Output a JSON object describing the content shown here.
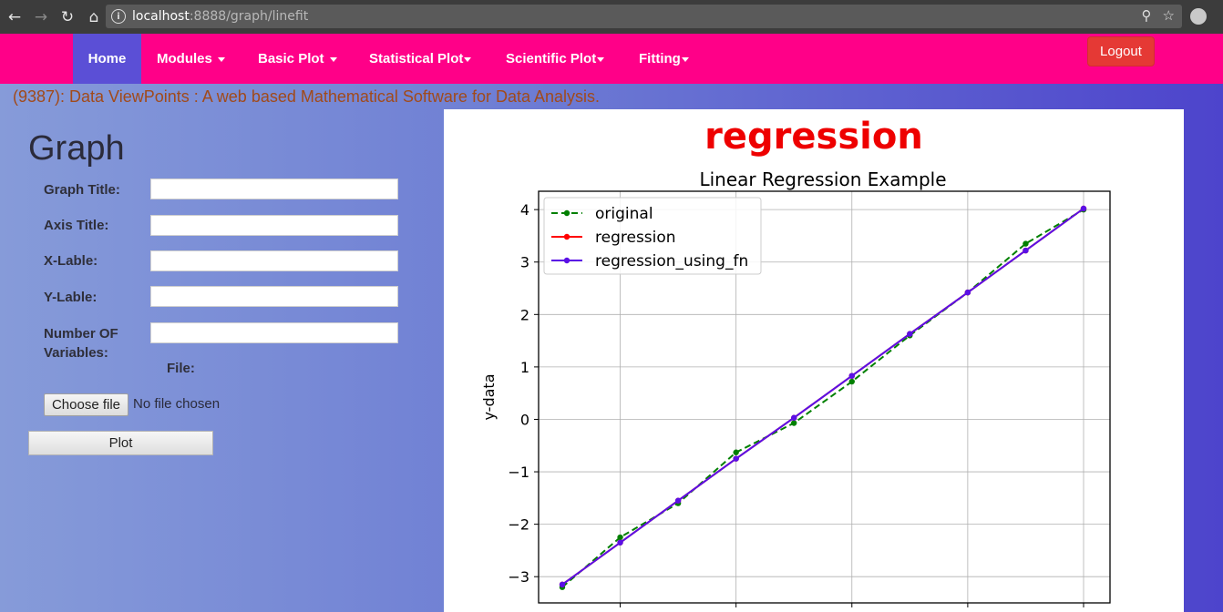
{
  "browser": {
    "url_host": "localhost",
    "url_rest": ":8888/graph/linefit",
    "icons": [
      "back-icon",
      "forward-icon",
      "reload-icon",
      "home-icon",
      "info-icon",
      "zoom-icon",
      "star-icon",
      "extension-icon"
    ]
  },
  "navbar": {
    "items": [
      {
        "label": "Home"
      },
      {
        "label": "Modules"
      },
      {
        "label": "Basic Plot"
      },
      {
        "label": "Statistical Plot"
      },
      {
        "label": "Scientific Plot"
      },
      {
        "label": "Fitting"
      }
    ],
    "logout_label": "Logout",
    "colors": {
      "bar": "#ff0088",
      "active": "#5b4fd6",
      "logout": "#e53935"
    }
  },
  "tagline": "(9387): Data ViewPoints : A web based Mathematical Software for Data Analysis.",
  "form": {
    "title": "Graph",
    "fields": [
      {
        "label": "Graph Title:",
        "value": ""
      },
      {
        "label": "Axis Title:",
        "value": ""
      },
      {
        "label": "X-Lable:",
        "value": ""
      },
      {
        "label": "Y-Lable:",
        "value": ""
      },
      {
        "label": "Number OF Variables:",
        "value": ""
      }
    ],
    "file_label": "File:",
    "choose_file_label": "Choose file",
    "no_file_text": "No file chosen",
    "plot_label": "Plot"
  },
  "result": {
    "heading": "regression"
  },
  "chart_data": {
    "type": "line",
    "title": "Linear Regression Example",
    "xlabel": "",
    "ylabel": "y-data",
    "ylim": [
      -3.5,
      4.35
    ],
    "yticks": [
      -3,
      -2,
      -1,
      0,
      1,
      2,
      3,
      4
    ],
    "ytick_labels": [
      "−3",
      "−2",
      "−1",
      "0",
      "1",
      "2",
      "3",
      "4"
    ],
    "x": [
      0,
      1,
      2,
      3,
      4,
      5,
      6,
      7,
      8,
      9
    ],
    "grid": true,
    "legend_position": "top-left",
    "series": [
      {
        "name": "original",
        "style": "dashed",
        "color": "#008000",
        "values": [
          -3.2,
          -2.25,
          -1.6,
          -0.63,
          -0.07,
          0.72,
          1.6,
          2.42,
          3.35,
          4.0
        ]
      },
      {
        "name": "regression",
        "style": "solid",
        "color": "#ff0000",
        "values": [
          -3.15,
          -2.35,
          -1.55,
          -0.75,
          0.03,
          0.83,
          1.63,
          2.42,
          3.22,
          4.02
        ]
      },
      {
        "name": "regression_using_fn",
        "style": "solid",
        "color": "#5a10e6",
        "values": [
          -3.15,
          -2.35,
          -1.55,
          -0.75,
          0.03,
          0.83,
          1.63,
          2.42,
          3.22,
          4.02
        ]
      }
    ]
  }
}
